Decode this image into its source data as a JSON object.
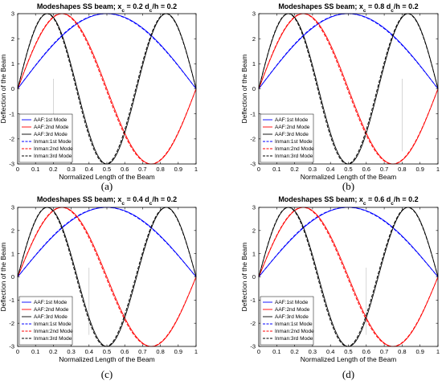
{
  "chart_data": [
    {
      "type": "line",
      "title": "Modeshapes SS beam; x_c = 0.2   d_c/h = 0.2",
      "title_parts": {
        "pre": "Modeshapes SS beam; x",
        "sub1": "c",
        "mid": " = 0.2   d",
        "sub2": "c",
        "post": "/h = 0.2"
      },
      "caption": "(a)",
      "xlabel": "Normalized Length of the Beam",
      "ylabel": "Deflection of the Beam",
      "xlim": [
        0,
        1
      ],
      "ylim": [
        -3,
        3
      ],
      "xticks": [
        "0",
        "0.1",
        "0.2",
        "0.3",
        "0.4",
        "0.5",
        "0.6",
        "0.7",
        "0.8",
        "0.9",
        "1"
      ],
      "yticks": [
        "-3",
        "-2",
        "-1",
        "0",
        "1",
        "2",
        "3"
      ],
      "legend_position": "bottom-left",
      "crack_x": 0.2,
      "series": [
        {
          "name": "AAF:1st Mode",
          "mode": 1,
          "color": "#0000ff",
          "dash": false
        },
        {
          "name": "AAF:2nd Mode",
          "mode": 2,
          "color": "#ff0000",
          "dash": false
        },
        {
          "name": "AAF:3rd Mode",
          "mode": 3,
          "color": "#000000",
          "dash": false
        },
        {
          "name": "Inman:1st Mode",
          "mode": 1,
          "color": "#0000ff",
          "dash": true
        },
        {
          "name": "Inman:2nd Mode",
          "mode": 2,
          "color": "#ff0000",
          "dash": true
        },
        {
          "name": "Inman:3rd Mode",
          "mode": 3,
          "color": "#000000",
          "dash": true
        }
      ]
    },
    {
      "type": "line",
      "title": "Modeshapes SS beam; x_c = 0.8   d_c/h = 0.2",
      "title_parts": {
        "pre": "Modeshapes SS beam; x",
        "sub1": "c",
        "mid": " = 0.8   d",
        "sub2": "c",
        "post": "/h = 0.2"
      },
      "caption": "(b)",
      "xlabel": "Normalized Length of the Beam",
      "ylabel": "Deflection of the Beam",
      "xlim": [
        0,
        1
      ],
      "ylim": [
        -3,
        3
      ],
      "xticks": [
        "0",
        "0.1",
        "0.2",
        "0.3",
        "0.4",
        "0.5",
        "0.6",
        "0.7",
        "0.8",
        "0.9",
        "1"
      ],
      "yticks": [
        "-3",
        "-2",
        "-1",
        "0",
        "1",
        "2",
        "3"
      ],
      "legend_position": "bottom-left",
      "crack_x": 0.8,
      "series": [
        {
          "name": "AAF:1st Mode",
          "mode": 1,
          "color": "#0000ff",
          "dash": false
        },
        {
          "name": "AAF:2nd Mode",
          "mode": 2,
          "color": "#ff0000",
          "dash": false
        },
        {
          "name": "AAF:3rd Mode",
          "mode": 3,
          "color": "#000000",
          "dash": false
        },
        {
          "name": "Inman:1st Mode",
          "mode": 1,
          "color": "#0000ff",
          "dash": true
        },
        {
          "name": "Inman:2nd Mode",
          "mode": 2,
          "color": "#ff0000",
          "dash": true
        },
        {
          "name": "Inman:3rd Mode",
          "mode": 3,
          "color": "#000000",
          "dash": true
        }
      ]
    },
    {
      "type": "line",
      "title": "Modeshapes SS beam; x_c = 0.4   d_c/h = 0.2",
      "title_parts": {
        "pre": "Modeshapes SS beam; x",
        "sub1": "c",
        "mid": " = 0.4   d",
        "sub2": "c",
        "post": "/h = 0.2"
      },
      "caption": "(c)",
      "xlabel": "Normalized Length of the Beam",
      "ylabel": "Deflection of the Beam",
      "xlim": [
        0,
        1
      ],
      "ylim": [
        -3,
        3
      ],
      "xticks": [
        "0",
        "0.1",
        "0.2",
        "0.3",
        "0.4",
        "0.5",
        "0.6",
        "0.7",
        "0.8",
        "0.9",
        "1"
      ],
      "yticks": [
        "-3",
        "-2",
        "-1",
        "0",
        "1",
        "2",
        "3"
      ],
      "legend_position": "bottom-left",
      "crack_x": 0.4,
      "series": [
        {
          "name": "AAF:1st Mode",
          "mode": 1,
          "color": "#0000ff",
          "dash": false
        },
        {
          "name": "AAF:2nd Mode",
          "mode": 2,
          "color": "#ff0000",
          "dash": false
        },
        {
          "name": "AAF:3rd Mode",
          "mode": 3,
          "color": "#000000",
          "dash": false
        },
        {
          "name": "Inman:1st Mode",
          "mode": 1,
          "color": "#0000ff",
          "dash": true
        },
        {
          "name": "Inman:2nd Mode",
          "mode": 2,
          "color": "#ff0000",
          "dash": true
        },
        {
          "name": "Inman:3rd Mode",
          "mode": 3,
          "color": "#000000",
          "dash": true
        }
      ]
    },
    {
      "type": "line",
      "title": "Modeshapes SS beam; x_c = 0.6   d_c/h = 0.2",
      "title_parts": {
        "pre": "Modeshapes SS beam; x",
        "sub1": "c",
        "mid": " = 0.6   d",
        "sub2": "c",
        "post": "/h = 0.2"
      },
      "caption": "(d)",
      "xlabel": "Normalized Length of the Beam",
      "ylabel": "Deflection of the Beam",
      "xlim": [
        0,
        1
      ],
      "ylim": [
        -3,
        3
      ],
      "xticks": [
        "0",
        "0.1",
        "0.2",
        "0.3",
        "0.4",
        "0.5",
        "0.6",
        "0.7",
        "0.8",
        "0.9",
        "1"
      ],
      "yticks": [
        "-3",
        "-2",
        "-1",
        "0",
        "1",
        "2",
        "3"
      ],
      "legend_position": "bottom-left",
      "crack_x": 0.6,
      "series": [
        {
          "name": "AAF:1st Mode",
          "mode": 1,
          "color": "#0000ff",
          "dash": false
        },
        {
          "name": "AAF:2nd Mode",
          "mode": 2,
          "color": "#ff0000",
          "dash": false
        },
        {
          "name": "AAF:3rd Mode",
          "mode": 3,
          "color": "#000000",
          "dash": false
        },
        {
          "name": "Inman:1st Mode",
          "mode": 1,
          "color": "#0000ff",
          "dash": true
        },
        {
          "name": "Inman:2nd Mode",
          "mode": 2,
          "color": "#ff0000",
          "dash": true
        },
        {
          "name": "Inman:3rd Mode",
          "mode": 3,
          "color": "#000000",
          "dash": true
        }
      ]
    }
  ]
}
